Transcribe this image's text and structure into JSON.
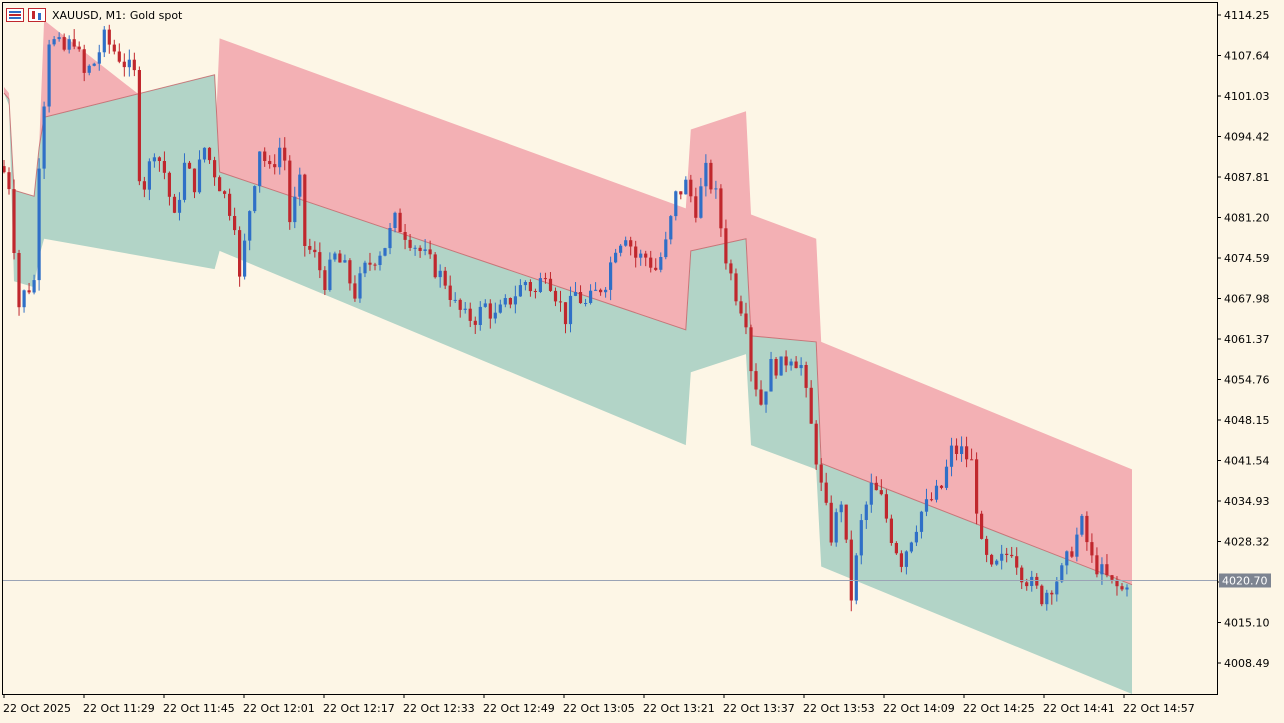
{
  "header": {
    "symbol": "XAUUSD, M1:",
    "description": "Gold spot"
  },
  "current_price_label": "4020.70",
  "colors": {
    "background": "#fdf6e6",
    "bull_candle": "#2f6fc7",
    "bear_candle": "#c0272d",
    "upper_band": "#f3b0b4",
    "lower_band": "#b2d4c7",
    "price_line": "#9aa3b5",
    "price_tag": "#7d8491",
    "axis": "#000000"
  },
  "chart_data": {
    "type": "candlestick",
    "title": "XAUUSD, M1:  Gold spot",
    "y_ticks": [
      "4114.25",
      "4107.64",
      "4101.03",
      "4094.42",
      "4087.81",
      "4081.20",
      "4074.59",
      "4067.98",
      "4061.37",
      "4054.76",
      "4048.15",
      "4041.54",
      "4034.93",
      "4028.32",
      "4021.71",
      "4015.10",
      "4008.49"
    ],
    "x_ticks": [
      "22 Oct 2025",
      "22 Oct 11:29",
      "22 Oct 11:45",
      "22 Oct 12:01",
      "22 Oct 12:17",
      "22 Oct 12:33",
      "22 Oct 12:49",
      "22 Oct 13:05",
      "22 Oct 13:21",
      "22 Oct 13:37",
      "22 Oct 13:53",
      "22 Oct 14:09",
      "22 Oct 14:25",
      "22 Oct 14:41",
      "22 Oct 14:57"
    ],
    "ylim": [
      4002,
      4116
    ],
    "bar_count": 225,
    "current_price": 4020.7,
    "close_path": [
      [
        0,
        4088
      ],
      [
        1,
        4086
      ],
      [
        3,
        4066
      ],
      [
        4,
        4068
      ],
      [
        6,
        4070
      ],
      [
        7,
        4090
      ],
      [
        8,
        4100
      ],
      [
        9,
        4110
      ],
      [
        12,
        4108
      ],
      [
        14,
        4110
      ],
      [
        16,
        4104
      ],
      [
        18,
        4106
      ],
      [
        20,
        4110
      ],
      [
        22,
        4108
      ],
      [
        24,
        4106
      ],
      [
        26,
        4104
      ],
      [
        27,
        4088
      ],
      [
        28,
        4086
      ],
      [
        30,
        4092
      ],
      [
        32,
        4088
      ],
      [
        34,
        4080
      ],
      [
        36,
        4089
      ],
      [
        38,
        4086
      ],
      [
        40,
        4092
      ],
      [
        42,
        4088
      ],
      [
        44,
        4084
      ],
      [
        46,
        4080
      ],
      [
        47,
        4070
      ],
      [
        49,
        4082
      ],
      [
        51,
        4092
      ],
      [
        53,
        4088
      ],
      [
        55,
        4092
      ],
      [
        56,
        4090
      ],
      [
        57,
        4080
      ],
      [
        59,
        4086
      ],
      [
        60,
        4076
      ],
      [
        62,
        4074
      ],
      [
        64,
        4070
      ],
      [
        66,
        4074
      ],
      [
        68,
        4072
      ],
      [
        70,
        4068
      ],
      [
        72,
        4072
      ],
      [
        74,
        4074
      ],
      [
        76,
        4076
      ],
      [
        78,
        4080
      ],
      [
        80,
        4078
      ],
      [
        82,
        4076
      ],
      [
        84,
        4074
      ],
      [
        86,
        4072
      ],
      [
        88,
        4070
      ],
      [
        90,
        4066
      ],
      [
        92,
        4064
      ],
      [
        94,
        4064
      ],
      [
        96,
        4066
      ],
      [
        98,
        4064
      ],
      [
        100,
        4066
      ],
      [
        102,
        4068
      ],
      [
        104,
        4070
      ],
      [
        106,
        4068
      ],
      [
        108,
        4072
      ],
      [
        110,
        4068
      ],
      [
        112,
        4064
      ],
      [
        114,
        4068
      ],
      [
        116,
        4066
      ],
      [
        118,
        4068
      ],
      [
        120,
        4070
      ],
      [
        122,
        4076
      ],
      [
        124,
        4078
      ],
      [
        126,
        4074
      ],
      [
        128,
        4074
      ],
      [
        130,
        4072
      ],
      [
        132,
        4076
      ],
      [
        134,
        4084
      ],
      [
        136,
        4086
      ],
      [
        138,
        4082
      ],
      [
        140,
        4088
      ],
      [
        142,
        4084
      ],
      [
        144,
        4074
      ],
      [
        146,
        4068
      ],
      [
        148,
        4064
      ],
      [
        149,
        4056
      ],
      [
        151,
        4050
      ],
      [
        153,
        4056
      ],
      [
        155,
        4056
      ],
      [
        157,
        4058
      ],
      [
        159,
        4056
      ],
      [
        161,
        4046
      ],
      [
        163,
        4036
      ],
      [
        165,
        4028
      ],
      [
        167,
        4034
      ],
      [
        169,
        4018
      ],
      [
        171,
        4030
      ],
      [
        173,
        4036
      ],
      [
        175,
        4034
      ],
      [
        177,
        4028
      ],
      [
        179,
        4024
      ],
      [
        181,
        4028
      ],
      [
        183,
        4032
      ],
      [
        185,
        4034
      ],
      [
        187,
        4036
      ],
      [
        189,
        4042
      ],
      [
        191,
        4042
      ],
      [
        193,
        4040
      ],
      [
        195,
        4026
      ],
      [
        197,
        4022
      ],
      [
        199,
        4024
      ],
      [
        201,
        4026
      ],
      [
        203,
        4022
      ],
      [
        205,
        4020
      ],
      [
        207,
        4018
      ],
      [
        209,
        4020
      ],
      [
        211,
        4022
      ],
      [
        213,
        4026
      ],
      [
        215,
        4030
      ],
      [
        217,
        4024
      ],
      [
        219,
        4022
      ],
      [
        221,
        4020
      ],
      [
        223,
        4019
      ],
      [
        224,
        4020.7
      ]
    ],
    "upper_band": [
      [
        0,
        4102
      ],
      [
        1,
        4101
      ],
      [
        2,
        4078
      ],
      [
        6,
        4076
      ],
      [
        7,
        4092
      ],
      [
        8,
        4113
      ],
      [
        42,
        4091
      ],
      [
        43,
        4110
      ],
      [
        136,
        4082
      ],
      [
        137,
        4095
      ],
      [
        148,
        4098
      ],
      [
        149,
        4081
      ],
      [
        162,
        4077
      ],
      [
        163,
        4060
      ],
      [
        225,
        4039
      ]
    ],
    "mid_line": [
      [
        0,
        4101
      ],
      [
        1,
        4100
      ],
      [
        2,
        4085
      ],
      [
        6,
        4084
      ],
      [
        7,
        4092
      ],
      [
        8,
        4097
      ],
      [
        42,
        4104
      ],
      [
        43,
        4088
      ],
      [
        136,
        4062
      ],
      [
        137,
        4075
      ],
      [
        148,
        4077
      ],
      [
        149,
        4061
      ],
      [
        162,
        4060
      ],
      [
        163,
        4040
      ],
      [
        225,
        4020
      ]
    ],
    "lower_band": [
      [
        0,
        4101
      ],
      [
        1,
        4099
      ],
      [
        2,
        4070
      ],
      [
        6,
        4069
      ],
      [
        7,
        4074
      ],
      [
        8,
        4077
      ],
      [
        42,
        4072
      ],
      [
        43,
        4075
      ],
      [
        136,
        4043
      ],
      [
        137,
        4055
      ],
      [
        148,
        4058
      ],
      [
        149,
        4043
      ],
      [
        162,
        4039
      ],
      [
        163,
        4023
      ],
      [
        225,
        4002
      ]
    ]
  }
}
